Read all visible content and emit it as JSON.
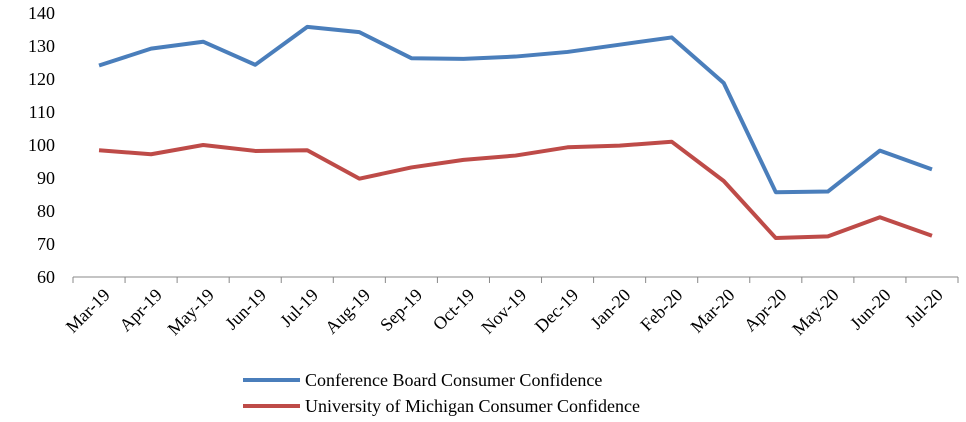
{
  "chart_data": {
    "type": "line",
    "categories": [
      "Mar-19",
      "Apr-19",
      "May-19",
      "Jun-19",
      "Jul-19",
      "Aug-19",
      "Sep-19",
      "Oct-19",
      "Nov-19",
      "Dec-19",
      "Jan-20",
      "Feb-20",
      "Mar-20",
      "Apr-20",
      "May-20",
      "Jun-20",
      "Jul-20"
    ],
    "series": [
      {
        "name": "Conference Board Consumer Confidence",
        "color": "#4a7ebb",
        "values": [
          124.1,
          129.2,
          131.3,
          124.3,
          135.8,
          134.2,
          126.3,
          126.1,
          126.8,
          128.2,
          130.4,
          132.6,
          118.8,
          85.7,
          85.9,
          98.3,
          92.6
        ]
      },
      {
        "name": "University of Michigan Consumer Confidence",
        "color": "#be4b48",
        "values": [
          98.4,
          97.2,
          100.0,
          98.2,
          98.4,
          89.8,
          93.2,
          95.5,
          96.8,
          99.3,
          99.8,
          101.0,
          89.1,
          71.8,
          72.3,
          78.1,
          72.5
        ]
      }
    ],
    "ylim": [
      60,
      140
    ],
    "yticks": [
      60,
      70,
      80,
      90,
      100,
      110,
      120,
      130,
      140
    ],
    "legend": "bottom"
  }
}
